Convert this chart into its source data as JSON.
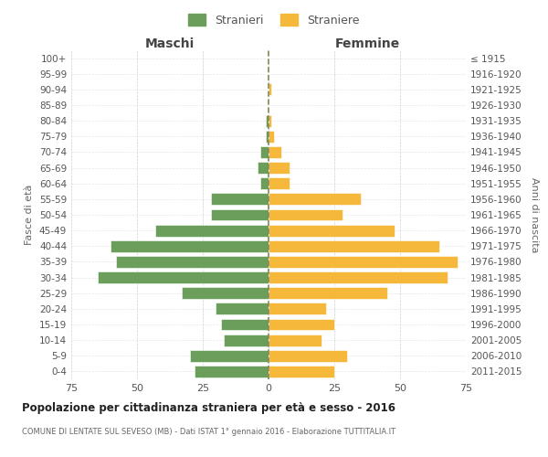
{
  "age_groups": [
    "0-4",
    "5-9",
    "10-14",
    "15-19",
    "20-24",
    "25-29",
    "30-34",
    "35-39",
    "40-44",
    "45-49",
    "50-54",
    "55-59",
    "60-64",
    "65-69",
    "70-74",
    "75-79",
    "80-84",
    "85-89",
    "90-94",
    "95-99",
    "100+"
  ],
  "birth_years": [
    "2011-2015",
    "2006-2010",
    "2001-2005",
    "1996-2000",
    "1991-1995",
    "1986-1990",
    "1981-1985",
    "1976-1980",
    "1971-1975",
    "1966-1970",
    "1961-1965",
    "1956-1960",
    "1951-1955",
    "1946-1950",
    "1941-1945",
    "1936-1940",
    "1931-1935",
    "1926-1930",
    "1921-1925",
    "1916-1920",
    "≤ 1915"
  ],
  "males": [
    28,
    30,
    17,
    18,
    20,
    33,
    65,
    58,
    60,
    43,
    22,
    22,
    3,
    4,
    3,
    1,
    1,
    0,
    0,
    0,
    0
  ],
  "females": [
    25,
    30,
    20,
    25,
    22,
    45,
    68,
    72,
    65,
    48,
    28,
    35,
    8,
    8,
    5,
    2,
    1,
    0,
    1,
    0,
    0
  ],
  "male_color": "#6a9e5a",
  "female_color": "#f5b83a",
  "background_color": "#ffffff",
  "grid_color": "#cccccc",
  "dashed_line_color": "#888855",
  "title": "Popolazione per cittadinanza straniera per età e sesso - 2016",
  "subtitle": "COMUNE DI LENTATE SUL SEVESO (MB) - Dati ISTAT 1° gennaio 2016 - Elaborazione TUTTITALIA.IT",
  "xlabel_left": "Maschi",
  "xlabel_right": "Femmine",
  "ylabel_left": "Fasce di età",
  "ylabel_right": "Anni di nascita",
  "legend_male": "Stranieri",
  "legend_female": "Straniere",
  "xlim": 75
}
